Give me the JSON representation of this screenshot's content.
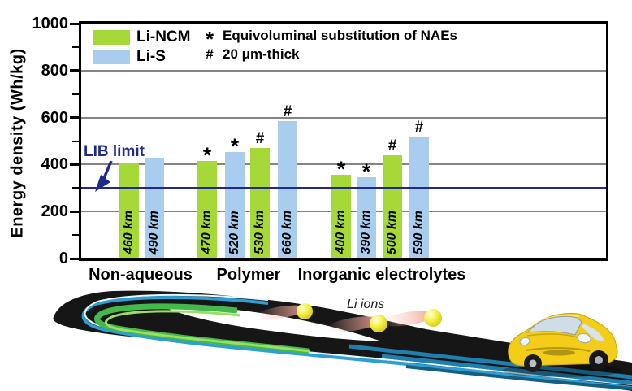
{
  "figure": {
    "ylabel": "Energy density (Wh/kg)",
    "lib_limit_label": "LIB limit",
    "legend": [
      {
        "label": "Li-NCM"
      },
      {
        "label": "Li-S"
      }
    ],
    "annotations": [
      {
        "symbol": "*",
        "text": "Equivoluminal substitution of NAEs"
      },
      {
        "symbol": "#",
        "text": "20 μm-thick"
      }
    ],
    "li_ions_label": "Li ions"
  },
  "chart_data": {
    "type": "bar",
    "title": "",
    "xlabel": "",
    "ylabel": "Energy density (Wh/kg)",
    "ylim": [
      0,
      1000
    ],
    "yticks": [
      0,
      200,
      400,
      600,
      800,
      1000
    ],
    "grid": "horizontal major gridlines, gray",
    "legend_position": "top-left inside plot",
    "series_colors": {
      "Li-NCM": "#a6d838",
      "Li-S": "#a9cdee"
    },
    "reference_line": {
      "label": "LIB limit",
      "value": 300,
      "color": "#1f2a8a"
    },
    "categories": [
      "Non-aqueous",
      "Polymer",
      "Inorganic electrolytes"
    ],
    "marker_meanings": {
      "*": "Equivoluminal substitution of NAEs",
      "#": "20 μm-thick"
    },
    "bars": [
      {
        "category": "Non-aqueous",
        "series": "Li-NCM",
        "value": 405,
        "label": "460 km",
        "marker": ""
      },
      {
        "category": "Non-aqueous",
        "series": "Li-S",
        "value": 430,
        "label": "490 km",
        "marker": ""
      },
      {
        "category": "Polymer",
        "series": "Li-NCM",
        "value": 415,
        "label": "470 km",
        "marker": "*"
      },
      {
        "category": "Polymer",
        "series": "Li-S",
        "value": 455,
        "label": "520 km",
        "marker": "*"
      },
      {
        "category": "Polymer",
        "series": "Li-NCM",
        "value": 470,
        "label": "530 km",
        "marker": "#"
      },
      {
        "category": "Polymer",
        "series": "Li-S",
        "value": 585,
        "label": "660 km",
        "marker": "#"
      },
      {
        "category": "Inorganic electrolytes",
        "series": "Li-NCM",
        "value": 355,
        "label": "400 km",
        "marker": "*"
      },
      {
        "category": "Inorganic electrolytes",
        "series": "Li-S",
        "value": 345,
        "label": "390 km",
        "marker": "*"
      },
      {
        "category": "Inorganic electrolytes",
        "series": "Li-NCM",
        "value": 440,
        "label": "500 km",
        "marker": "#"
      },
      {
        "category": "Inorganic electrolytes",
        "series": "Li-S",
        "value": 520,
        "label": "590 km",
        "marker": "#"
      }
    ]
  }
}
